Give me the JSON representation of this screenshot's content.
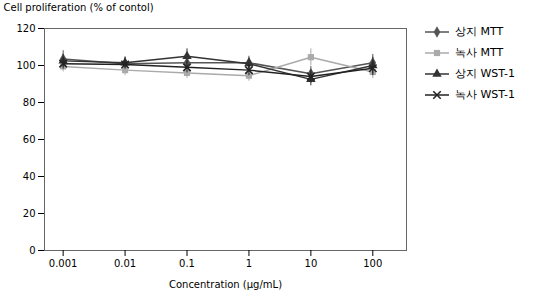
{
  "chart_data": {
    "type": "line",
    "x": [
      0.001,
      0.01,
      0.1,
      1,
      10,
      100
    ],
    "xlim": [
      0.0005,
      350
    ],
    "xticks": [
      0.001,
      0.01,
      0.1,
      1,
      10,
      100
    ],
    "log": "x",
    "ylim": [
      0,
      120
    ],
    "yticks": [
      0,
      20,
      40,
      60,
      80,
      100,
      120
    ],
    "xlabel": "Concentration (μg/mL)",
    "ylabel": "Cell proliferation (% of contol)",
    "legend": "right",
    "grid": false,
    "series": [
      {
        "name": "상지 MTT",
        "color": "#555555",
        "marker": "diamond",
        "line_style": "solid",
        "values": [
          103.5,
          101.0,
          101.5,
          101.5,
          95.5,
          101.5
        ],
        "yerr": [
          4.5,
          3.5,
          3.5,
          3.5,
          4.0,
          4.5
        ]
      },
      {
        "name": "녹사 MTT",
        "color": "#aaaaaa",
        "marker": "square",
        "line_style": "solid",
        "values": [
          99.5,
          97.5,
          96.0,
          94.5,
          104.5,
          96.5
        ],
        "yerr": [
          3.0,
          3.0,
          3.0,
          3.0,
          4.5,
          3.5
        ]
      },
      {
        "name": "상지 WST-1",
        "color": "#333333",
        "marker": "triangle",
        "line_style": "solid",
        "values": [
          102.5,
          101.5,
          105.0,
          101.0,
          92.5,
          100.0
        ],
        "yerr": [
          3.5,
          3.0,
          4.0,
          3.0,
          3.5,
          4.5
        ]
      },
      {
        "name": "녹사 WST-1",
        "color": "#222222",
        "marker": "x",
        "line_style": "solid",
        "values": [
          101.0,
          100.5,
          99.0,
          97.5,
          94.0,
          98.5
        ],
        "yerr": [
          3.0,
          2.5,
          3.0,
          3.0,
          3.5,
          4.0
        ]
      }
    ]
  }
}
